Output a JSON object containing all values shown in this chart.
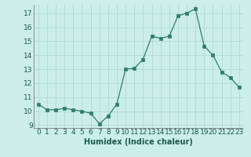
{
  "x": [
    0,
    1,
    2,
    3,
    4,
    5,
    6,
    7,
    8,
    9,
    10,
    11,
    12,
    13,
    14,
    15,
    16,
    17,
    18,
    19,
    20,
    21,
    22,
    23
  ],
  "y": [
    10.5,
    10.1,
    10.1,
    10.2,
    10.1,
    10.0,
    9.85,
    9.1,
    9.65,
    10.5,
    13.0,
    13.05,
    13.7,
    15.35,
    15.2,
    15.35,
    16.8,
    17.0,
    17.3,
    14.65,
    14.0,
    12.8,
    12.4,
    11.7
  ],
  "line_color": "#2e7d6e",
  "marker_color": "#2e7d6e",
  "bg_color": "#cceee8",
  "grid_color": "#aad4ce",
  "xlabel": "Humidex (Indice chaleur)",
  "xlim": [
    -0.5,
    23.5
  ],
  "ylim": [
    8.8,
    17.6
  ],
  "yticks": [
    9,
    10,
    11,
    12,
    13,
    14,
    15,
    16,
    17
  ],
  "xticks": [
    0,
    1,
    2,
    3,
    4,
    5,
    6,
    7,
    8,
    9,
    10,
    11,
    12,
    13,
    14,
    15,
    16,
    17,
    18,
    19,
    20,
    21,
    22,
    23
  ],
  "xlabel_fontsize": 7,
  "tick_fontsize": 6.5
}
